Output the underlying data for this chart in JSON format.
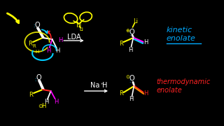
{
  "bg_color": "#000000",
  "yellow": "#ffff00",
  "white": "#ffffff",
  "cyan": "#00ccff",
  "magenta": "#ff00ff",
  "blue": "#4488ff",
  "red": "#ff2222",
  "orange": "#ff8800",
  "green": "#00ff88",
  "kinetic_color": "#00aaff",
  "thermo_color": "#ff2222",
  "lda_color": "#ffffff",
  "nah_color": "#ffffff",
  "kinetic_label": "kinetic\nenolate",
  "thermo_label": "thermodynamic\nenolate",
  "lda_label": "LDA",
  "nah_label": "Na",
  "fig_width": 3.2,
  "fig_height": 1.8,
  "dpi": 100
}
